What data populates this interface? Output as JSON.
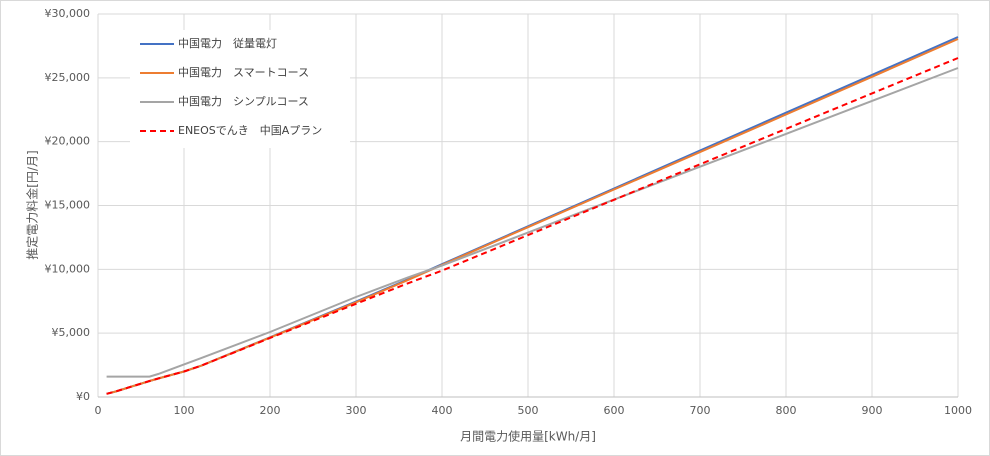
{
  "chart_data": {
    "type": "line",
    "xlabel": "月間電力使用量[kWh/月]",
    "ylabel": "推定電力料金[円/月]",
    "x": [
      10,
      20,
      60,
      70,
      100,
      120,
      200,
      300,
      360,
      400,
      500,
      600,
      700,
      800,
      900,
      1000
    ],
    "series": [
      {
        "name": "中国電力　従量電灯",
        "color": "#4472c4",
        "linestyle": "solid",
        "values": [
          250,
          420,
          1250,
          1450,
          2000,
          2450,
          4680,
          7480,
          9200,
          10400,
          13370,
          16330,
          19300,
          22270,
          25230,
          28200
        ]
      },
      {
        "name": "中国電力　スマートコース",
        "color": "#ed7d31",
        "linestyle": "solid",
        "values": [
          250,
          420,
          1250,
          1450,
          2000,
          2450,
          4650,
          7420,
          9150,
          10350,
          13300,
          16250,
          19180,
          22130,
          25080,
          28040
        ]
      },
      {
        "name": "中国電力　シンプルコース",
        "color": "#a5a5a5",
        "linestyle": "solid",
        "values": [
          1600,
          1600,
          1600,
          1800,
          2550,
          3050,
          5090,
          7830,
          9350,
          10300,
          12880,
          15460,
          18040,
          20610,
          23190,
          25770
        ]
      },
      {
        "name": "ENEOSでんき　中国Aプラン",
        "color": "#ff0000",
        "linestyle": "dashed",
        "values": [
          250,
          420,
          1250,
          1450,
          2000,
          2450,
          4620,
          7300,
          8900,
          9900,
          12680,
          15450,
          18230,
          21000,
          23780,
          26550
        ]
      }
    ],
    "xlim": [
      0,
      1000
    ],
    "xticks": [
      0,
      100,
      200,
      300,
      400,
      500,
      600,
      700,
      800,
      900,
      1000
    ],
    "ylim": [
      0,
      30000
    ],
    "yticks": [
      {
        "value": 0,
        "label": "¥0"
      },
      {
        "value": 5000,
        "label": "¥5,000"
      },
      {
        "value": 10000,
        "label": "¥10,000"
      },
      {
        "value": 15000,
        "label": "¥15,000"
      },
      {
        "value": 20000,
        "label": "¥20,000"
      },
      {
        "value": 25000,
        "label": "¥25,000"
      },
      {
        "value": 30000,
        "label": "¥30,000"
      }
    ],
    "grid": true,
    "legend": "upper-left"
  }
}
